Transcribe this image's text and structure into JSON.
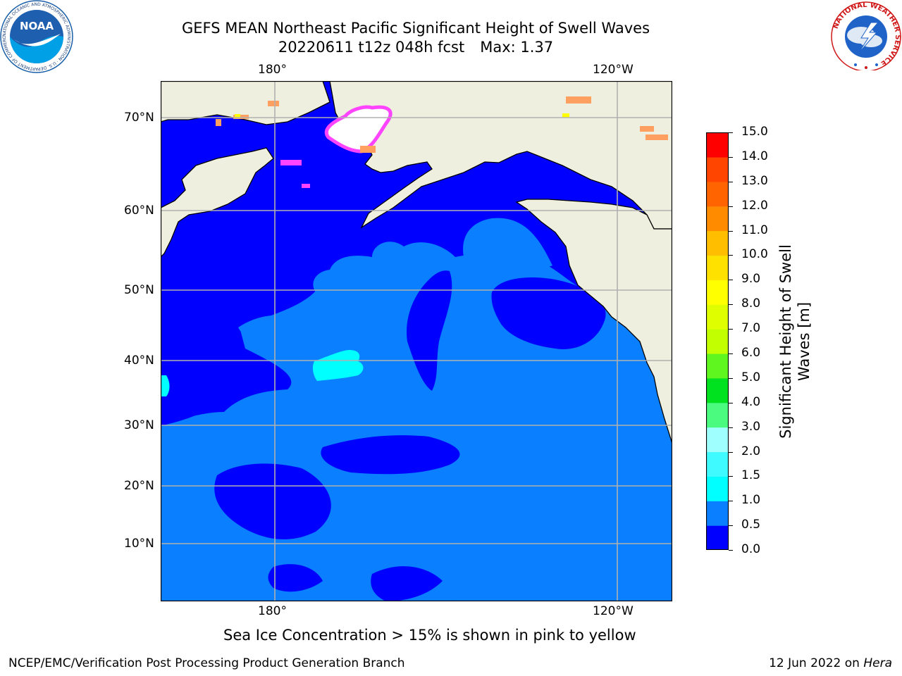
{
  "header": {
    "title_line1": "GEFS MEAN Northeast Pacific Significant Height of Swell Waves",
    "title_date": "20220611 t12z 048h fcst",
    "title_max": "Max: 1.37"
  },
  "logos": {
    "noaa": {
      "text": "NOAA",
      "ring_text": "NATIONAL OCEANIC AND ATMOSPHERIC ADMINISTRATION · U.S. DEPARTMENT OF COMMERCE"
    },
    "nws": {
      "ring_text": "NATIONAL WEATHER SERVICE"
    }
  },
  "map": {
    "lon_labels": [
      "180°",
      "120°W"
    ],
    "lat_labels": [
      "70°N",
      "60°N",
      "50°N",
      "40°N",
      "30°N",
      "20°N",
      "10°N"
    ],
    "colors": {
      "ocean_low": "#0000ff",
      "ocean_mid": "#0a7fff",
      "ocean_high": "#00ffff",
      "land": "#efefdf",
      "grid": "#b0b0b0",
      "ice_pink": "#ff44ff",
      "ice_orange": "#ffa060",
      "ice_yellow": "#ffff00"
    }
  },
  "colorbar": {
    "title": "Significant Height of Swell Waves [m]",
    "ticks": [
      "0.0",
      "0.5",
      "1.0",
      "1.5",
      "2.0",
      "3.0",
      "4.0",
      "5.0",
      "6.0",
      "7.0",
      "8.0",
      "9.0",
      "10.0",
      "11.0",
      "12.0",
      "13.0",
      "14.0",
      "15.0"
    ],
    "colors": [
      "#0000ff",
      "#0a7fff",
      "#00ffff",
      "#3ffbff",
      "#9fffff",
      "#4bfb7f",
      "#00e21f",
      "#5ff51f",
      "#c2ff00",
      "#dfff00",
      "#ffff00",
      "#ffe100",
      "#ffbf00",
      "#ff8c00",
      "#ff6400",
      "#ff4500",
      "#ff0000"
    ]
  },
  "caption": "Sea Ice Concentration > 15% is shown in pink to yellow",
  "footer": {
    "left": "NCEP/EMC/Verification Post Processing Product Generation Branch",
    "right_date": "12 Jun 2022 on",
    "right_machine": "Hera"
  }
}
